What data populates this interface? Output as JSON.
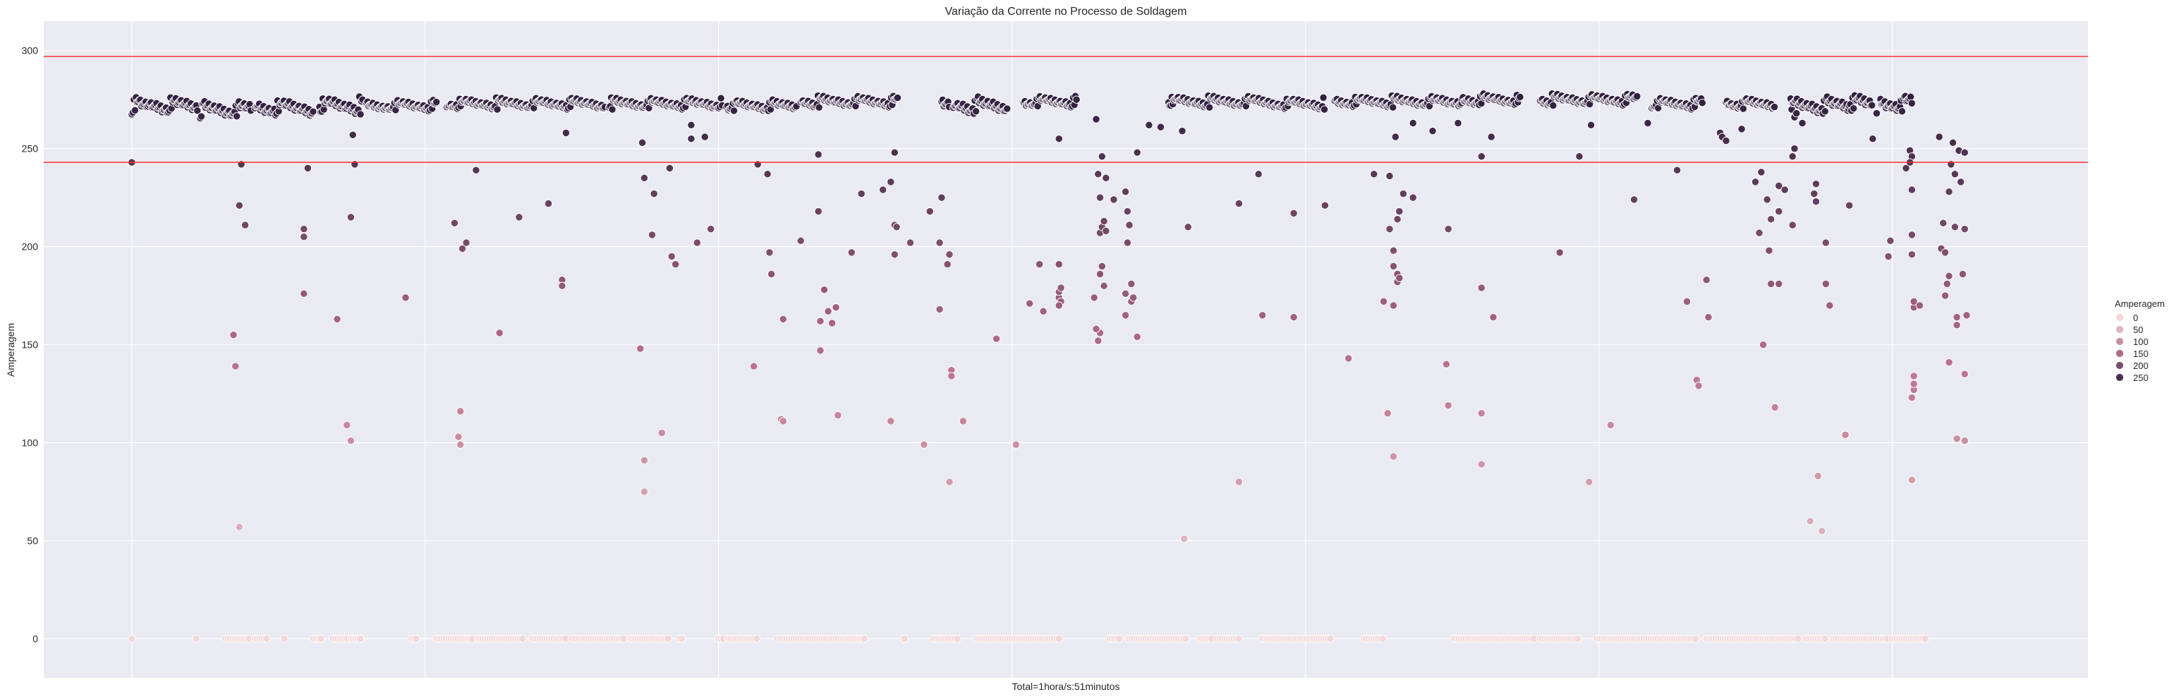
{
  "chart_data": {
    "type": "scatter",
    "title": "Variação da Corrente no Processo de Soldagem",
    "xlabel": "Total=1hora/s:51minutos",
    "ylabel": "Amperagem",
    "ylim": [
      -20,
      315
    ],
    "xlim": [
      -45,
      1000
    ],
    "yticks": [
      0,
      50,
      100,
      150,
      200,
      250,
      300
    ],
    "xgrid_count": 7,
    "grid": true,
    "reference_lines": [
      {
        "y": 297,
        "color": "#ff3030"
      },
      {
        "y": 243,
        "color": "#ff3030"
      }
    ],
    "hue": {
      "title": "Amperagem",
      "levels": [
        0,
        50,
        100,
        150,
        200,
        250
      ],
      "color_low": "#f2d8d9",
      "color_mid": "#b9728d",
      "color_high": "#2d1e3e",
      "min": 0,
      "max": 280
    },
    "legend_position": "right",
    "segments": [
      {
        "x_start": 0,
        "x_end": 34,
        "level": 272,
        "spread": 3
      },
      {
        "x_start": 35,
        "x_end": 61,
        "level": 270,
        "spread": 3
      },
      {
        "x_start": 63,
        "x_end": 93,
        "level": 271,
        "spread": 3
      },
      {
        "x_start": 96,
        "x_end": 118,
        "level": 272,
        "spread": 3
      },
      {
        "x_start": 120,
        "x_end": 156,
        "level": 272,
        "spread": 2
      },
      {
        "x_start": 161,
        "x_end": 242,
        "level": 273,
        "spread": 2
      },
      {
        "x_start": 244,
        "x_end": 302,
        "level": 273,
        "spread": 2
      },
      {
        "x_start": 304,
        "x_end": 340,
        "level": 272,
        "spread": 2
      },
      {
        "x_start": 342,
        "x_end": 392,
        "level": 274,
        "spread": 2
      },
      {
        "x_start": 414,
        "x_end": 418,
        "level": 272,
        "spread": 3
      },
      {
        "x_start": 420,
        "x_end": 448,
        "level": 272,
        "spread": 3
      },
      {
        "x_start": 456,
        "x_end": 483,
        "level": 274,
        "spread": 2
      },
      {
        "x_start": 530,
        "x_end": 580,
        "level": 274,
        "spread": 2
      },
      {
        "x_start": 580,
        "x_end": 610,
        "level": 273,
        "spread": 2
      },
      {
        "x_start": 615,
        "x_end": 680,
        "level": 274,
        "spread": 2
      },
      {
        "x_start": 680,
        "x_end": 710,
        "level": 275,
        "spread": 2
      },
      {
        "x_start": 720,
        "x_end": 770,
        "level": 275,
        "spread": 2
      },
      {
        "x_start": 777,
        "x_end": 803,
        "level": 273,
        "spread": 2
      },
      {
        "x_start": 815,
        "x_end": 840,
        "level": 273,
        "spread": 2
      },
      {
        "x_start": 848,
        "x_end": 878,
        "level": 272,
        "spread": 3
      },
      {
        "x_start": 878,
        "x_end": 890,
        "level": 273,
        "spread": 3
      },
      {
        "x_start": 894,
        "x_end": 910,
        "level": 273,
        "spread": 3
      }
    ],
    "zero_clusters": [
      [
        0,
        0
      ],
      [
        33,
        34
      ],
      [
        48,
        61
      ],
      [
        63,
        70
      ],
      [
        78,
        79
      ],
      [
        93,
        97
      ],
      [
        103,
        111
      ],
      [
        112,
        118
      ],
      [
        143,
        146
      ],
      [
        156,
        175
      ],
      [
        177,
        200
      ],
      [
        205,
        222
      ],
      [
        225,
        252
      ],
      [
        255,
        275
      ],
      [
        280,
        282
      ],
      [
        300,
        303
      ],
      [
        305,
        320
      ],
      [
        330,
        375
      ],
      [
        395,
        396
      ],
      [
        410,
        422
      ],
      [
        432,
        475
      ],
      [
        500,
        505
      ],
      [
        510,
        540
      ],
      [
        546,
        553
      ],
      [
        555,
        567
      ],
      [
        578,
        614
      ],
      [
        630,
        640
      ],
      [
        676,
        718
      ],
      [
        720,
        740
      ],
      [
        749,
        800
      ],
      [
        805,
        852
      ],
      [
        856,
        866
      ],
      [
        870,
        898
      ],
      [
        900,
        918
      ]
    ],
    "points": [
      [
        0,
        243
      ],
      [
        52,
        155
      ],
      [
        53,
        139
      ],
      [
        55,
        57
      ],
      [
        55,
        221
      ],
      [
        56,
        242
      ],
      [
        58,
        211
      ],
      [
        88,
        209
      ],
      [
        88,
        205
      ],
      [
        88,
        176
      ],
      [
        90,
        240
      ],
      [
        105,
        163
      ],
      [
        110,
        109
      ],
      [
        112,
        101
      ],
      [
        112,
        215
      ],
      [
        113,
        257
      ],
      [
        114,
        242
      ],
      [
        140,
        174
      ],
      [
        165,
        212
      ],
      [
        167,
        103
      ],
      [
        168,
        99
      ],
      [
        168,
        116
      ],
      [
        169,
        199
      ],
      [
        171,
        202
      ],
      [
        176,
        239
      ],
      [
        188,
        156
      ],
      [
        198,
        215
      ],
      [
        213,
        222
      ],
      [
        222,
        258
      ],
      [
        220,
        183
      ],
      [
        220,
        180
      ],
      [
        260,
        148
      ],
      [
        261,
        253
      ],
      [
        262,
        235
      ],
      [
        262,
        91
      ],
      [
        262,
        75
      ],
      [
        266,
        206
      ],
      [
        267,
        227
      ],
      [
        271,
        105
      ],
      [
        275,
        240
      ],
      [
        276,
        195
      ],
      [
        278,
        191
      ],
      [
        286,
        262
      ],
      [
        286,
        255
      ],
      [
        289,
        202
      ],
      [
        293,
        256
      ],
      [
        296,
        209
      ],
      [
        318,
        139
      ],
      [
        320,
        242
      ],
      [
        327,
        186
      ],
      [
        326,
        197
      ],
      [
        325,
        237
      ],
      [
        332,
        112
      ],
      [
        333,
        111
      ],
      [
        333,
        163
      ],
      [
        342,
        203
      ],
      [
        351,
        247
      ],
      [
        351,
        218
      ],
      [
        352,
        162
      ],
      [
        352,
        147
      ],
      [
        356,
        167
      ],
      [
        354,
        178
      ],
      [
        358,
        161
      ],
      [
        360,
        169
      ],
      [
        361,
        114
      ],
      [
        368,
        197
      ],
      [
        373,
        227
      ],
      [
        384,
        229
      ],
      [
        390,
        248
      ],
      [
        388,
        233
      ],
      [
        390,
        211
      ],
      [
        391,
        210
      ],
      [
        390,
        196
      ],
      [
        388,
        111
      ],
      [
        398,
        202
      ],
      [
        405,
        99
      ],
      [
        408,
        218
      ],
      [
        413,
        202
      ],
      [
        414,
        225
      ],
      [
        413,
        168
      ],
      [
        417,
        191
      ],
      [
        419,
        137
      ],
      [
        419,
        134
      ],
      [
        418,
        80
      ],
      [
        418,
        196
      ],
      [
        425,
        111
      ],
      [
        442,
        153
      ],
      [
        452,
        99
      ],
      [
        459,
        171
      ],
      [
        464,
        191
      ],
      [
        466,
        167
      ],
      [
        474,
        174
      ],
      [
        474,
        177
      ],
      [
        475,
        179
      ],
      [
        475,
        172
      ],
      [
        474,
        170
      ],
      [
        474,
        191
      ],
      [
        474,
        255
      ],
      [
        492,
        174
      ],
      [
        494,
        152
      ],
      [
        495,
        156
      ],
      [
        493,
        158
      ],
      [
        495,
        207
      ],
      [
        497,
        180
      ],
      [
        496,
        190
      ],
      [
        495,
        186
      ],
      [
        493,
        265
      ],
      [
        496,
        246
      ],
      [
        494,
        237
      ],
      [
        495,
        225
      ],
      [
        496,
        210
      ],
      [
        497,
        213
      ],
      [
        498,
        208
      ],
      [
        502,
        224
      ],
      [
        498,
        235
      ],
      [
        508,
        176
      ],
      [
        508,
        165
      ],
      [
        509,
        202
      ],
      [
        511,
        181
      ],
      [
        511,
        172
      ],
      [
        512,
        174
      ],
      [
        514,
        154
      ],
      [
        514,
        248
      ],
      [
        509,
        218
      ],
      [
        510,
        211
      ],
      [
        508,
        228
      ],
      [
        526,
        261
      ],
      [
        520,
        262
      ],
      [
        537,
        259
      ],
      [
        538,
        51
      ],
      [
        540,
        210
      ],
      [
        566,
        222
      ],
      [
        566,
        80
      ],
      [
        576,
        237
      ],
      [
        578,
        165
      ],
      [
        594,
        164
      ],
      [
        594,
        217
      ],
      [
        610,
        221
      ],
      [
        622,
        143
      ],
      [
        635,
        237
      ],
      [
        640,
        172
      ],
      [
        642,
        115
      ],
      [
        643,
        236
      ],
      [
        643,
        209
      ],
      [
        645,
        93
      ],
      [
        645,
        198
      ],
      [
        645,
        190
      ],
      [
        647,
        186
      ],
      [
        647,
        182
      ],
      [
        645,
        170
      ],
      [
        647,
        214
      ],
      [
        648,
        218
      ],
      [
        648,
        184
      ],
      [
        646,
        256
      ],
      [
        650,
        227
      ],
      [
        655,
        263
      ],
      [
        655,
        225
      ],
      [
        665,
        259
      ],
      [
        672,
        140
      ],
      [
        673,
        119
      ],
      [
        673,
        209
      ],
      [
        678,
        263
      ],
      [
        690,
        115
      ],
      [
        690,
        89
      ],
      [
        690,
        179
      ],
      [
        696,
        164
      ],
      [
        695,
        256
      ],
      [
        690,
        246
      ],
      [
        730,
        197
      ],
      [
        740,
        246
      ],
      [
        745,
        80
      ],
      [
        746,
        262
      ],
      [
        756,
        109
      ],
      [
        768,
        224
      ],
      [
        775,
        263
      ],
      [
        790,
        239
      ],
      [
        795,
        172
      ],
      [
        800,
        132
      ],
      [
        801,
        129
      ],
      [
        805,
        183
      ],
      [
        806,
        164
      ],
      [
        812,
        258
      ],
      [
        813,
        256
      ],
      [
        815,
        254
      ],
      [
        823,
        260
      ],
      [
        830,
        233
      ],
      [
        832,
        207
      ],
      [
        833,
        238
      ],
      [
        834,
        150
      ],
      [
        836,
        224
      ],
      [
        837,
        198
      ],
      [
        838,
        181
      ],
      [
        838,
        214
      ],
      [
        840,
        118
      ],
      [
        842,
        218
      ],
      [
        842,
        181
      ],
      [
        842,
        231
      ],
      [
        845,
        229
      ],
      [
        849,
        246
      ],
      [
        850,
        250
      ],
      [
        849,
        211
      ],
      [
        850,
        266
      ],
      [
        851,
        268
      ],
      [
        854,
        263
      ],
      [
        858,
        60
      ],
      [
        860,
        227
      ],
      [
        861,
        223
      ],
      [
        861,
        232
      ],
      [
        862,
        83
      ],
      [
        864,
        55
      ],
      [
        866,
        181
      ],
      [
        866,
        202
      ],
      [
        868,
        170
      ],
      [
        876,
        104
      ],
      [
        878,
        221
      ],
      [
        890,
        255
      ],
      [
        892,
        268
      ],
      [
        899,
        203
      ],
      [
        898,
        195
      ],
      [
        907,
        240
      ],
      [
        909,
        249
      ],
      [
        910,
        246
      ],
      [
        910,
        229
      ],
      [
        910,
        206
      ],
      [
        910,
        196
      ],
      [
        910,
        81
      ],
      [
        910,
        123
      ],
      [
        911,
        127
      ],
      [
        911,
        130
      ],
      [
        911,
        134
      ],
      [
        911,
        169
      ],
      [
        911,
        172
      ],
      [
        914,
        170
      ],
      [
        909,
        243
      ],
      [
        924,
        256
      ],
      [
        925,
        199
      ],
      [
        926,
        212
      ],
      [
        927,
        197
      ],
      [
        927,
        175
      ],
      [
        928,
        181
      ],
      [
        929,
        185
      ],
      [
        929,
        141
      ],
      [
        929,
        228
      ],
      [
        930,
        242
      ],
      [
        931,
        253
      ],
      [
        932,
        237
      ],
      [
        932,
        210
      ],
      [
        933,
        164
      ],
      [
        933,
        160
      ],
      [
        933,
        102
      ],
      [
        934,
        249
      ],
      [
        935,
        233
      ],
      [
        936,
        186
      ],
      [
        937,
        248
      ],
      [
        937,
        209
      ],
      [
        937,
        135
      ],
      [
        937,
        101
      ],
      [
        938,
        165
      ]
    ]
  }
}
